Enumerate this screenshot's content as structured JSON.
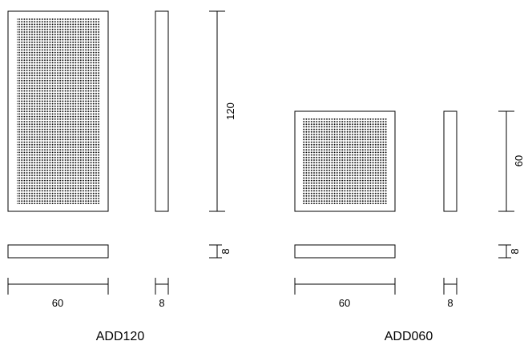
{
  "panels": [
    {
      "name": "ADD120",
      "width_label": "60",
      "depth_label": "8",
      "height_label": "120",
      "thickness_label": "8"
    },
    {
      "name": "ADD060",
      "width_label": "60",
      "depth_label": "8",
      "height_label": "60",
      "thickness_label": "8"
    }
  ]
}
